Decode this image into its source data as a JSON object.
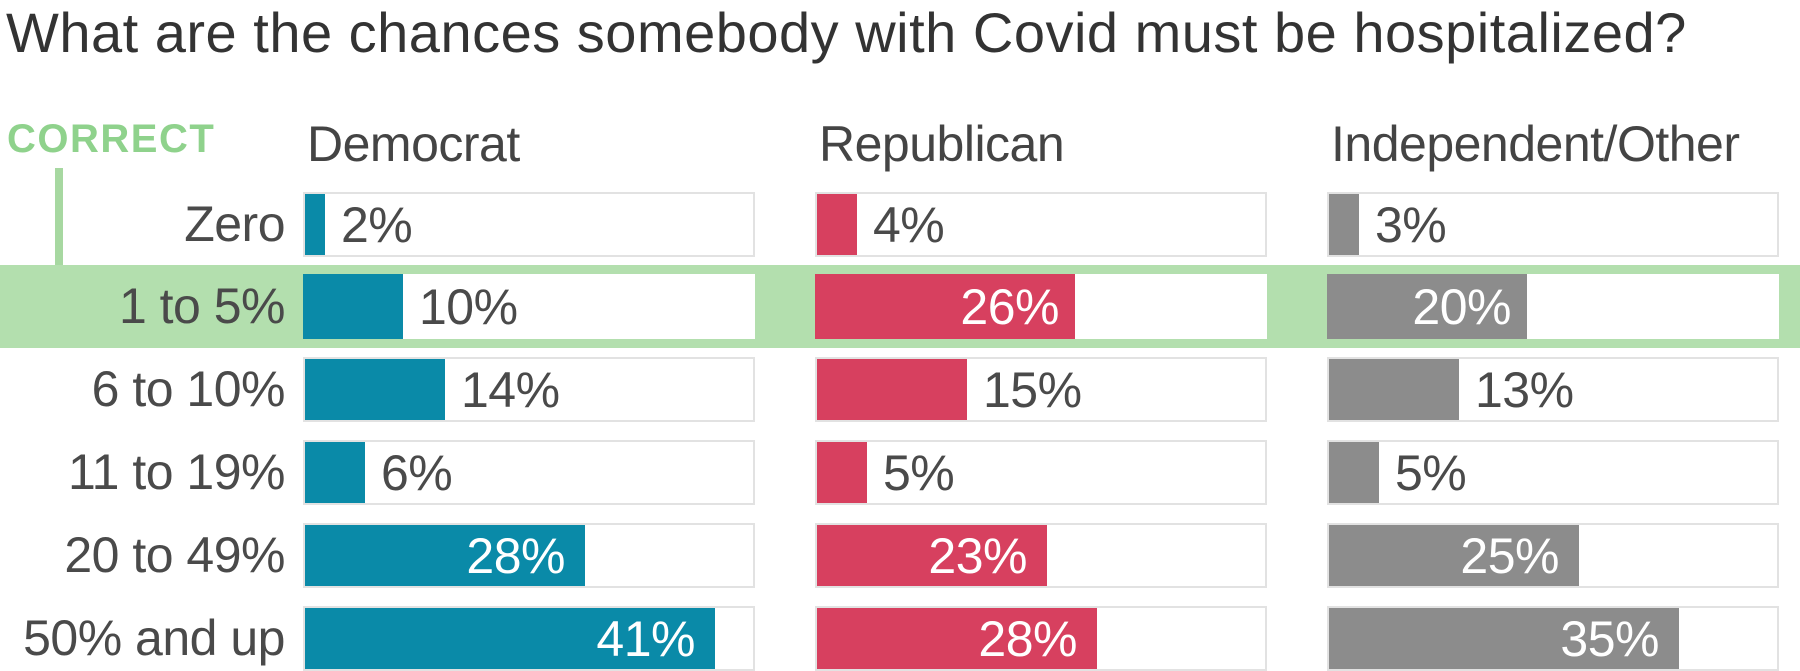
{
  "chart_data": {
    "type": "bar",
    "title": "What are the chances somebody with Covid must be hospitalized?",
    "correct_label": "CORRECT",
    "correct_category": "1 to 5%",
    "categories": [
      "Zero",
      "1 to 5%",
      "6 to 10%",
      "11 to 19%",
      "20 to 49%",
      "50% and up"
    ],
    "series": [
      {
        "name": "Democrat",
        "color": "#0a8aa8",
        "values": [
          2,
          10,
          14,
          6,
          28,
          41
        ],
        "value_labels": [
          "2%",
          "10%",
          "14%",
          "6%",
          "28%",
          "41%"
        ]
      },
      {
        "name": "Republican",
        "color": "#d7405f",
        "values": [
          4,
          26,
          15,
          5,
          23,
          28
        ],
        "value_labels": [
          "4%",
          "26%",
          "15%",
          "5%",
          "23%",
          "28%"
        ]
      },
      {
        "name": "Independent/Other",
        "color": "#8c8c8c",
        "values": [
          3,
          20,
          13,
          5,
          25,
          35
        ],
        "value_labels": [
          "3%",
          "20%",
          "13%",
          "5%",
          "25%",
          "35%"
        ]
      }
    ],
    "xlim": [
      0,
      45
    ],
    "value_suffix": "%",
    "inside_label_threshold": 20,
    "grid": false,
    "legend": "column headers above bars",
    "highlighted_row_note": "correct answer row has green band across full width",
    "colors": {
      "background": "#ffffff",
      "title_text": "#333333",
      "header_text": "#444444",
      "label_text": "#4a4a4a",
      "value_inside_text": "#ffffff",
      "track_fill": "#ffffff",
      "track_border": "#e2e2e2",
      "highlight_band": "#b3dfae",
      "correct_text": "#8fd28c",
      "connector_line": "#a7d8a1"
    }
  }
}
